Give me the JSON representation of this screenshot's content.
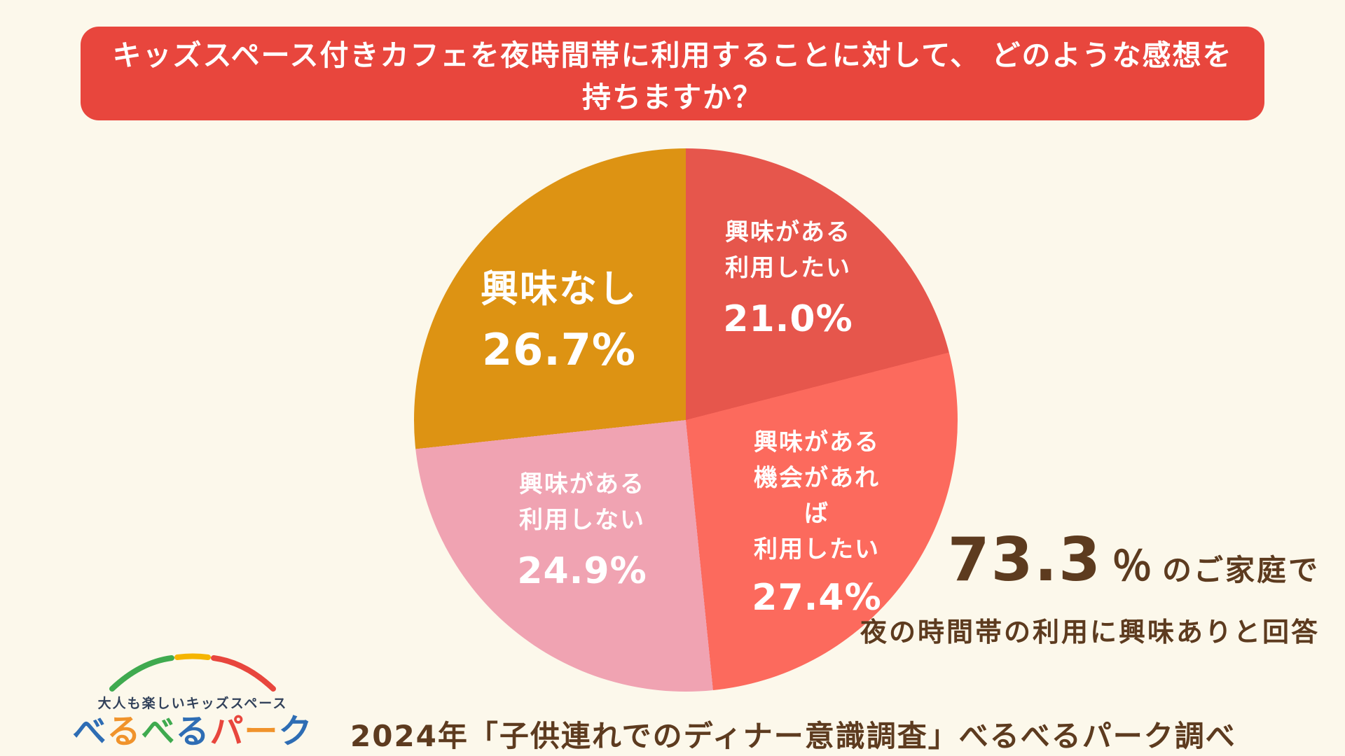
{
  "banner": {
    "text": "キッズスペース付きカフェを夜時間帯に利用することに対して、 どのような感想を持ちますか？",
    "bg_color": "#e8463d",
    "text_color": "#ffffff"
  },
  "chart_data": {
    "type": "pie",
    "title": "キッズスペース付きカフェを夜時間帯に利用することに対しての感想",
    "start_angle_deg": 0,
    "direction": "clockwise",
    "slices": [
      {
        "name": "interested-want-to-use",
        "label_lines": [
          "興味がある",
          "利用したい"
        ],
        "pct_label": "21.0%",
        "value": 21.0,
        "color": "#e6564c"
      },
      {
        "name": "interested-if-occasion",
        "label_lines": [
          "興味がある",
          "機会があれば",
          "利用したい"
        ],
        "pct_label": "27.4%",
        "value": 27.4,
        "color": "#fc6a5d"
      },
      {
        "name": "interested-not-use",
        "label_lines": [
          "興味がある",
          "利用しない"
        ],
        "pct_label": "24.9%",
        "value": 24.9,
        "color": "#f0a3b2"
      },
      {
        "name": "not-interested",
        "label_lines": [
          "興味なし"
        ],
        "pct_label": "26.7%",
        "value": 26.7,
        "color": "#dd9313"
      }
    ]
  },
  "callout": {
    "number": "73.3",
    "percent_sign": "％",
    "suffix": "のご家庭で",
    "sub": "夜の時間帯の利用に興味ありと回答",
    "color": "#5d3b1f"
  },
  "footer": {
    "source": "2024年「子供連れでのディナー意識調査」べるべるパーク調べ"
  },
  "logo": {
    "tagline": "大人も楽しいキッズスペース",
    "name": "べるべるパーク",
    "name_chars": [
      {
        "ch": "べ",
        "color": "#2e6db4"
      },
      {
        "ch": "る",
        "color": "#f0932b"
      },
      {
        "ch": "べ",
        "color": "#3faa4f"
      },
      {
        "ch": "る",
        "color": "#2e6db4"
      },
      {
        "ch": "パ",
        "color": "#e8463d"
      },
      {
        "ch": "ー",
        "color": "#f0932b"
      },
      {
        "ch": "ク",
        "color": "#2e6db4"
      }
    ]
  }
}
